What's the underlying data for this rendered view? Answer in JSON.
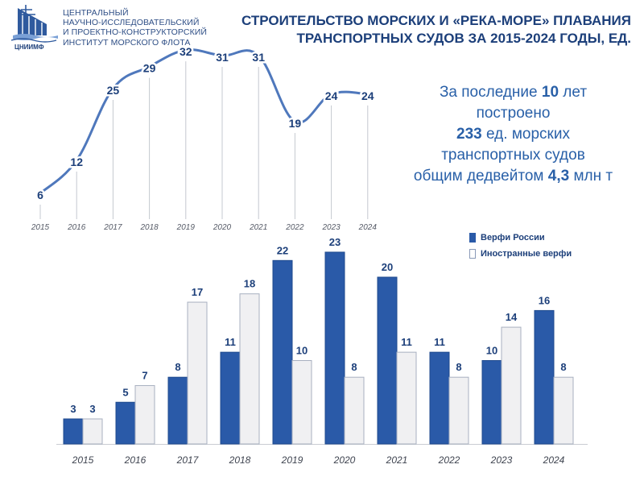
{
  "logo": {
    "lines": [
      "ЦЕНТРАЛЬНЫЙ",
      "НАУЧНО-ИССЛЕДОВАТЕЛЬСКИЙ",
      "И ПРОЕКТНО-КОНСТРУКТОРСКИЙ",
      "ИНСТИТУТ МОРСКОГО ФЛОТА"
    ],
    "abbr": "ЦНИИМФ"
  },
  "title": {
    "line1": "СТРОИТЕЛЬСТВО МОРСКИХ И «РЕКА-МОРЕ» ПЛАВАНИЯ",
    "line2": "ТРАНСПОРТНЫХ СУДОВ ЗА 2015-2024 ГОДЫ, ЕД."
  },
  "summary": {
    "l1_pre": "За последние ",
    "l1_num": "10",
    "l1_post": " лет",
    "l2": "построено",
    "l3_num": "233",
    "l3_post": " ед. морских",
    "l4": "транспортных судов",
    "l5_pre": "общим дедвейтом ",
    "l5_num": "4,3",
    "l5_post": " млн т"
  },
  "legend": {
    "russia": "Верфи России",
    "foreign": "Иностранные верфи"
  },
  "colors": {
    "dark": "#2a5aa8",
    "light_fill": "#f0f0f2",
    "line": "#4f78bc",
    "label": "#1c3f7a"
  },
  "chart_data": [
    {
      "type": "line",
      "x": [
        "2015",
        "2016",
        "2017",
        "2018",
        "2019",
        "2020",
        "2021",
        "2022",
        "2023",
        "2024"
      ],
      "values": [
        6,
        12,
        25,
        29,
        32,
        31,
        31,
        19,
        24,
        24
      ],
      "grid": false
    },
    {
      "type": "bar",
      "categories": [
        "2015",
        "2016",
        "2017",
        "2018",
        "2019",
        "2020",
        "2021",
        "2022",
        "2023",
        "2024"
      ],
      "series": [
        {
          "name": "Верфи России",
          "values": [
            3,
            5,
            8,
            11,
            22,
            23,
            20,
            11,
            10,
            16
          ]
        },
        {
          "name": "Иностранные верфи",
          "values": [
            3,
            7,
            17,
            18,
            10,
            8,
            11,
            8,
            14,
            8
          ]
        }
      ],
      "legend": "top-right",
      "grid": false
    }
  ]
}
